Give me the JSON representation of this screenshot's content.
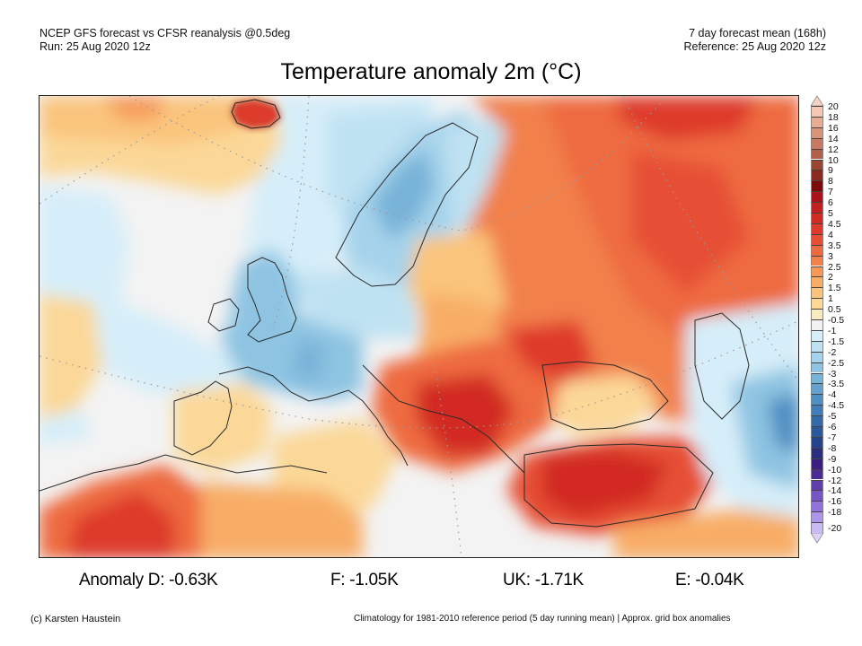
{
  "header": {
    "left_line1": "NCEP GFS forecast vs CFSR reanalysis @0.5deg",
    "left_line2": "Run: 25 Aug 2020 12z",
    "right_line1": "7 day forecast mean (168h)",
    "right_line2": "Reference: 25 Aug 2020 12z",
    "title": "Temperature anomaly 2m (°C)"
  },
  "colorbar": {
    "levels": [
      {
        "label": "20",
        "color": "#f3c9b6"
      },
      {
        "label": "18",
        "color": "#e7ad94"
      },
      {
        "label": "16",
        "color": "#d8937a"
      },
      {
        "label": "14",
        "color": "#c67a62"
      },
      {
        "label": "12",
        "color": "#b0604a"
      },
      {
        "label": "10",
        "color": "#9a4433"
      },
      {
        "label": "9",
        "color": "#8a2a1e"
      },
      {
        "label": "8",
        "color": "#7d0a0a"
      },
      {
        "label": "7",
        "color": "#a8141a"
      },
      {
        "label": "6",
        "color": "#c0201f"
      },
      {
        "label": "5",
        "color": "#d22b24"
      },
      {
        "label": "4.5",
        "color": "#de3a2c"
      },
      {
        "label": "4",
        "color": "#e64f35"
      },
      {
        "label": "3.5",
        "color": "#ee6a41"
      },
      {
        "label": "3",
        "color": "#f2804b"
      },
      {
        "label": "2.5",
        "color": "#f69857"
      },
      {
        "label": "2",
        "color": "#f8ad66"
      },
      {
        "label": "1.5",
        "color": "#fac47c"
      },
      {
        "label": "1",
        "color": "#fbd898"
      },
      {
        "label": "0.5",
        "color": "#f8ebbd"
      },
      {
        "label": "-0.5",
        "color": "#f2f2f2"
      },
      {
        "label": "-1",
        "color": "#d6eef9"
      },
      {
        "label": "-1.5",
        "color": "#bfe2f2"
      },
      {
        "label": "-2",
        "color": "#a6d3eb"
      },
      {
        "label": "-2.5",
        "color": "#8ec4e2"
      },
      {
        "label": "-3",
        "color": "#78b3d8"
      },
      {
        "label": "-3.5",
        "color": "#64a1cd"
      },
      {
        "label": "-4",
        "color": "#508fc2"
      },
      {
        "label": "-4.5",
        "color": "#417db6"
      },
      {
        "label": "-5",
        "color": "#356aa9"
      },
      {
        "label": "-6",
        "color": "#2c589b"
      },
      {
        "label": "-7",
        "color": "#25448c"
      },
      {
        "label": "-8",
        "color": "#2a2f80"
      },
      {
        "label": "-9",
        "color": "#3a1f80"
      },
      {
        "label": "-10",
        "color": "#4b2c95"
      },
      {
        "label": "-12",
        "color": "#5d3fac"
      },
      {
        "label": "-14",
        "color": "#7655c4"
      },
      {
        "label": "-16",
        "color": "#9272dc"
      },
      {
        "label": "-18",
        "color": "#ad95ea"
      },
      {
        "label": "-20",
        "color": "#c8baf2"
      }
    ],
    "top_arrow_color": "#f6d2c4",
    "bottom_arrow_color": "#ddd3f6"
  },
  "stats": {
    "d": "Anomaly D: -0.63K",
    "f": "F: -1.05K",
    "uk": "UK: -1.71K",
    "e": "E: -0.04K"
  },
  "footer": {
    "credit": "(c) Karsten Haustein",
    "note": "Climatology for 1981-2010 reference period (5 day running mean) | Approx. grid box anomalies"
  }
}
